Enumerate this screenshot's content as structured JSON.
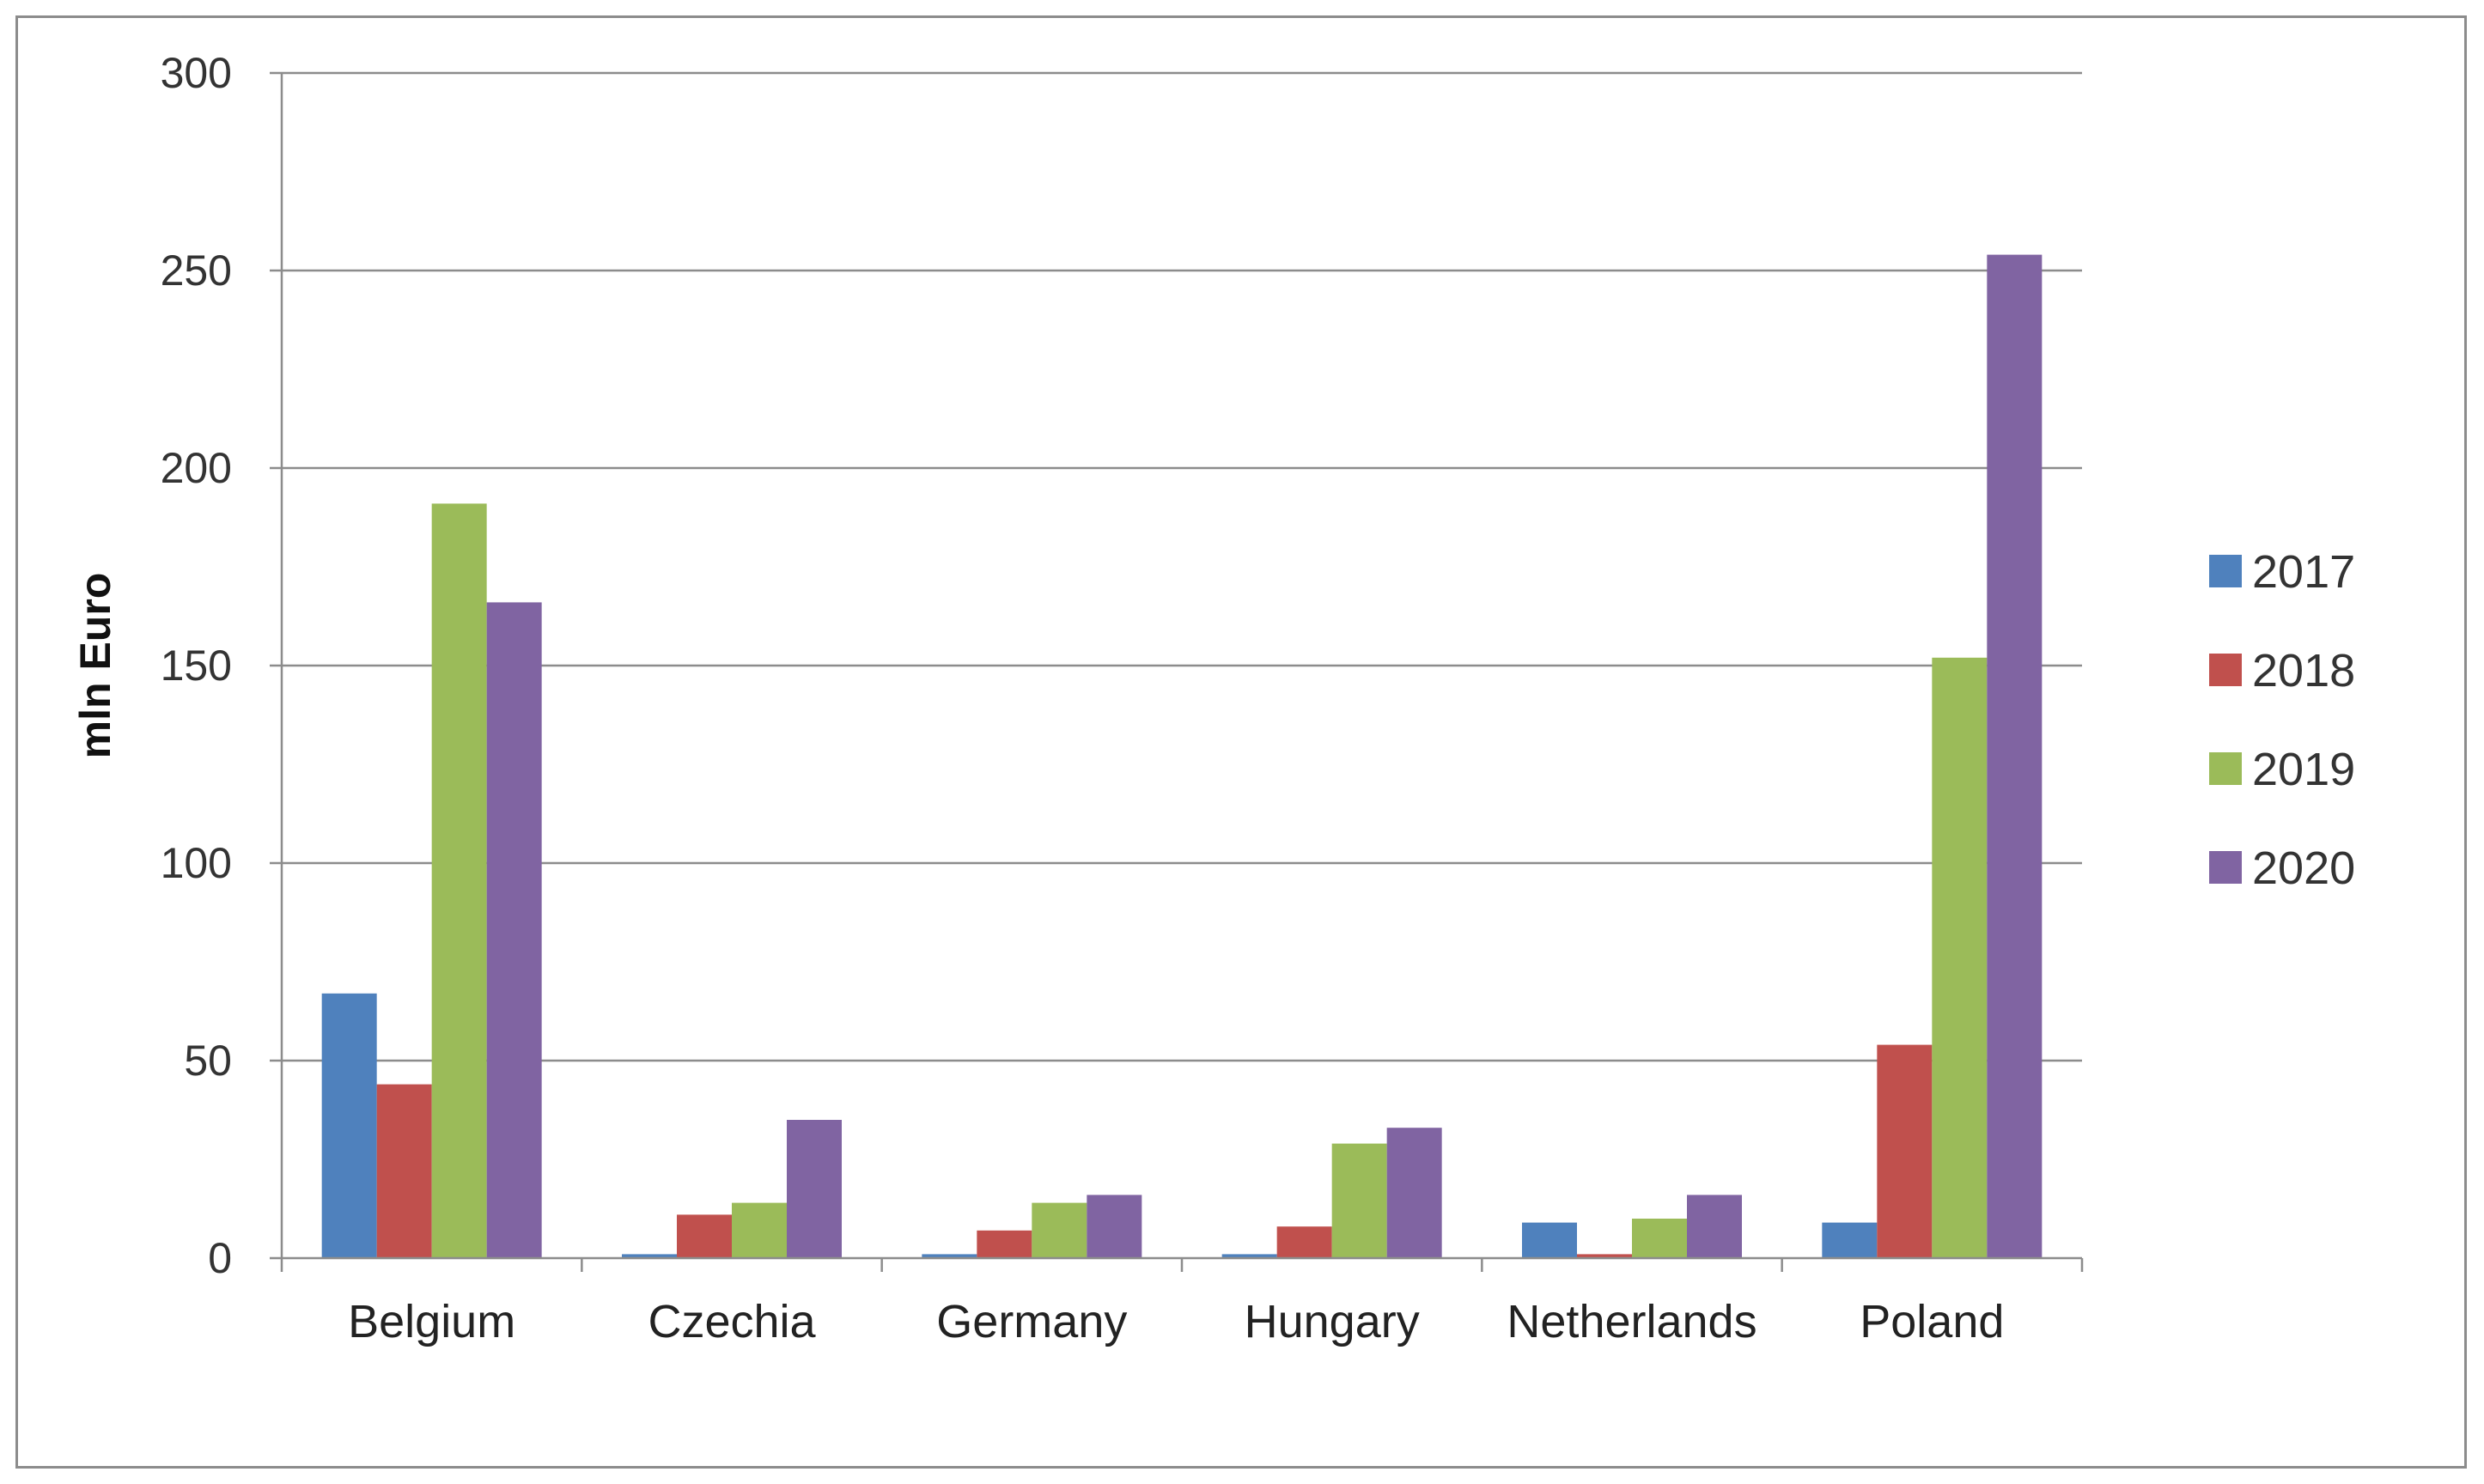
{
  "chart_data": {
    "type": "bar",
    "title": "",
    "xlabel": "",
    "ylabel": "mln Euro",
    "ylim": [
      0,
      300
    ],
    "yticks": [
      0,
      50,
      100,
      150,
      200,
      250,
      300
    ],
    "grid": true,
    "legend_position": "right",
    "categories": [
      "Belgium",
      "Czechia",
      "Germany",
      "Hungary",
      "Netherlands",
      "Poland"
    ],
    "series": [
      {
        "name": "2017",
        "color": "#4f81bd",
        "values": [
          67,
          1,
          1,
          1,
          9,
          9
        ]
      },
      {
        "name": "2018",
        "color": "#c0504d",
        "values": [
          44,
          11,
          7,
          8,
          1,
          54
        ]
      },
      {
        "name": "2019",
        "color": "#9bbb59",
        "values": [
          191,
          14,
          14,
          29,
          10,
          152
        ]
      },
      {
        "name": "2020",
        "color": "#8064a2",
        "values": [
          166,
          35,
          16,
          33,
          16,
          254
        ]
      }
    ]
  }
}
